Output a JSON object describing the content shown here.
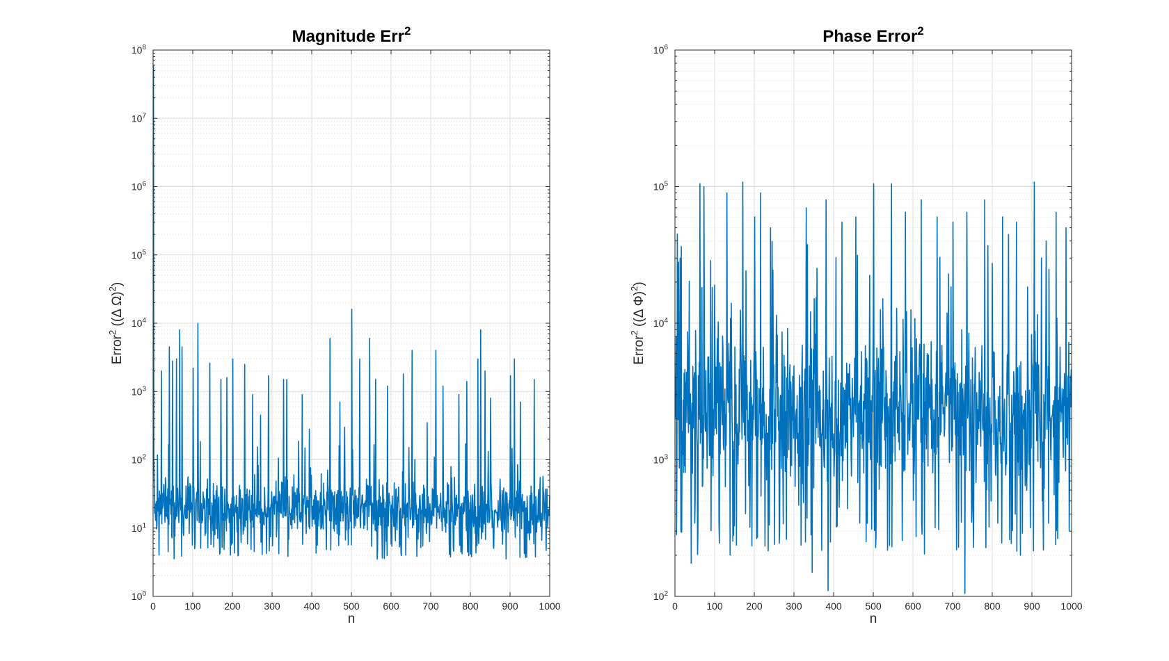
{
  "figure": {
    "background": "#ffffff",
    "axes_color": "#262626",
    "grid_color": "#dcdcdc",
    "line_color": "#0072bd"
  },
  "chart_data": [
    {
      "type": "line",
      "title": "Magnitude Err",
      "title_superscript": "2",
      "xlabel": "n",
      "ylabel_main": "Error",
      "ylabel_sup": "2",
      "ylabel_rest": "((Δ Ω)",
      "ylabel_sup2": "2",
      "ylabel_end": ")",
      "xlim": [
        0,
        1000
      ],
      "ylim": [
        1,
        100000000
      ],
      "yscale": "log",
      "grid": true,
      "minor_grid": true,
      "xticks": [
        "0",
        "100",
        "200",
        "300",
        "400",
        "500",
        "600",
        "700",
        "800",
        "900",
        "1000"
      ],
      "ytick_base": "10",
      "ytick_exponents": [
        "0",
        "1",
        "2",
        "3",
        "4",
        "5",
        "6",
        "7",
        "8"
      ],
      "series": [
        {
          "color": "#0072bd",
          "n_points": 1000,
          "initial_values": [
            60000000,
            100,
            40
          ],
          "baseline_range": [
            3.5,
            100
          ],
          "typical_level": 20,
          "peaks": [
            [
              20,
              2000
            ],
            [
              40,
              4500
            ],
            [
              48,
              2800
            ],
            [
              58,
              3000
            ],
            [
              66,
              8000
            ],
            [
              72,
              4500
            ],
            [
              100,
              2200
            ],
            [
              112,
              10000
            ],
            [
              142,
              2600
            ],
            [
              170,
              1500
            ],
            [
              185,
              1600
            ],
            [
              200,
              3000
            ],
            [
              230,
              2500
            ],
            [
              250,
              900
            ],
            [
              270,
              450
            ],
            [
              290,
              1700
            ],
            [
              328,
              1500
            ],
            [
              336,
              1500
            ],
            [
              375,
              900
            ],
            [
              393,
              280
            ],
            [
              445,
              6000
            ],
            [
              470,
              700
            ],
            [
              482,
              300
            ],
            [
              500,
              16000
            ],
            [
              520,
              3000
            ],
            [
              545,
              6000
            ],
            [
              560,
              1500
            ],
            [
              590,
              1200
            ],
            [
              630,
              1800
            ],
            [
              652,
              4000
            ],
            [
              690,
              350
            ],
            [
              712,
              4000
            ],
            [
              730,
              1200
            ],
            [
              770,
              900
            ],
            [
              790,
              1400
            ],
            [
              818,
              3000
            ],
            [
              825,
              8000
            ],
            [
              836,
              2000
            ],
            [
              850,
              800
            ],
            [
              900,
              1700
            ],
            [
              910,
              3000
            ],
            [
              925,
              700
            ],
            [
              960,
              1500
            ]
          ]
        }
      ]
    },
    {
      "type": "line",
      "title": "Phase Error",
      "title_superscript": "2",
      "xlabel": "n",
      "ylabel_main": "Error",
      "ylabel_sup": "2",
      "ylabel_rest": "((Δ Φ)",
      "ylabel_sup2": "2",
      "ylabel_end": ")",
      "xlim": [
        0,
        1000
      ],
      "ylim": [
        100,
        1000000
      ],
      "yscale": "log",
      "grid": true,
      "minor_grid": true,
      "xticks": [
        "0",
        "100",
        "200",
        "300",
        "400",
        "500",
        "600",
        "700",
        "800",
        "900",
        "1000"
      ],
      "ytick_base": "10",
      "ytick_exponents": [
        "2",
        "3",
        "4",
        "5",
        "6"
      ],
      "series": [
        {
          "color": "#0072bd",
          "n_points": 1000,
          "baseline_range": [
            200,
            20000
          ],
          "typical_level": 2500,
          "peaks": [
            [
              5,
              45000
            ],
            [
              12,
              30000
            ],
            [
              62,
              105000
            ],
            [
              72,
              100000
            ],
            [
              130,
              90000
            ],
            [
              170,
              108000
            ],
            [
              200,
              60000
            ],
            [
              215,
              90000
            ],
            [
              240,
              50000
            ],
            [
              330,
              70000
            ],
            [
              380,
              80000
            ],
            [
              420,
              55000
            ],
            [
              455,
              60000
            ],
            [
              500,
              105000
            ],
            [
              545,
              105000
            ],
            [
              580,
              65000
            ],
            [
              620,
              80000
            ],
            [
              660,
              60000
            ],
            [
              700,
              55000
            ],
            [
              735,
              65000
            ],
            [
              780,
              80000
            ],
            [
              825,
              60000
            ],
            [
              860,
              55000
            ],
            [
              905,
              108000
            ],
            [
              935,
              40000
            ],
            [
              960,
              65000
            ],
            [
              985,
              50000
            ]
          ],
          "troughs": [
            [
              40,
              175
            ],
            [
              250,
              240
            ],
            [
              345,
              150
            ],
            [
              385,
              110
            ],
            [
              730,
              105
            ],
            [
              870,
              200
            ]
          ]
        }
      ]
    }
  ]
}
